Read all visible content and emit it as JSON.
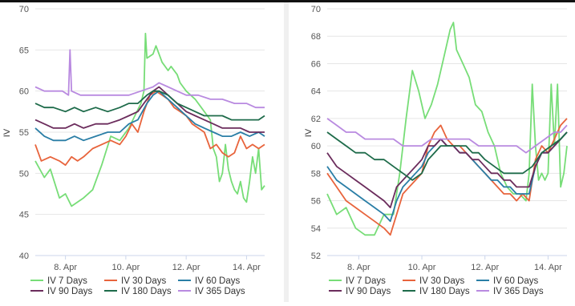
{
  "chart_data": [
    {
      "type": "line",
      "title": "",
      "xlabel": "",
      "ylabel": "IV",
      "ylim": [
        40,
        70
      ],
      "yticks": [
        40,
        45,
        50,
        55,
        60,
        65,
        70
      ],
      "xlim": [
        7.0,
        14.6
      ],
      "xticks": [
        {
          "x": 8,
          "label": "8. Apr"
        },
        {
          "x": 10,
          "label": "10. Apr"
        },
        {
          "x": 12,
          "label": "12. Apr"
        },
        {
          "x": 14,
          "label": "14. Apr"
        }
      ],
      "grid": "horizontal",
      "legend": "bottom",
      "series": [
        {
          "name": "IV 7 Days",
          "color": "#77dd77",
          "x": [
            7.0,
            7.3,
            7.5,
            7.8,
            8.0,
            8.2,
            8.4,
            8.6,
            8.9,
            9.2,
            9.5,
            9.8,
            10.1,
            10.3,
            10.5,
            10.6,
            10.65,
            10.7,
            10.9,
            11.0,
            11.2,
            11.4,
            11.5,
            11.7,
            11.8,
            12.0,
            12.3,
            12.5,
            12.8,
            12.9,
            13.0,
            13.1,
            13.2,
            13.3,
            13.4,
            13.5,
            13.6,
            13.7,
            13.8,
            13.9,
            14.0,
            14.1,
            14.2,
            14.3,
            14.4,
            14.5,
            14.6
          ],
          "values": [
            51.5,
            49.5,
            50.5,
            47.0,
            47.5,
            46.0,
            46.5,
            47.0,
            48.0,
            51.0,
            54.5,
            54.0,
            55.5,
            57.0,
            58.5,
            60.0,
            67.0,
            64.0,
            64.5,
            65.5,
            63.5,
            62.5,
            63.0,
            62.0,
            61.0,
            60.0,
            59.0,
            58.0,
            56.5,
            53.0,
            52.0,
            49.0,
            50.0,
            53.5,
            50.5,
            49.0,
            48.0,
            47.5,
            49.0,
            47.0,
            46.5,
            49.0,
            52.0,
            50.0,
            53.0,
            48.0,
            48.5
          ]
        },
        {
          "name": "IV 30 Days",
          "color": "#e8643c",
          "x": [
            7.0,
            7.2,
            7.5,
            7.8,
            8.0,
            8.2,
            8.4,
            8.6,
            8.9,
            9.2,
            9.5,
            9.8,
            10.0,
            10.2,
            10.4,
            10.6,
            10.8,
            11.0,
            11.2,
            11.4,
            11.6,
            11.8,
            12.0,
            12.2,
            12.4,
            12.6,
            12.8,
            13.0,
            13.2,
            13.4,
            13.6,
            13.8,
            14.0,
            14.2,
            14.4,
            14.6
          ],
          "values": [
            53.5,
            51.5,
            52.0,
            51.5,
            51.0,
            52.0,
            51.5,
            52.0,
            53.0,
            53.5,
            54.0,
            53.5,
            54.5,
            56.0,
            55.0,
            57.5,
            59.5,
            60.0,
            59.5,
            59.0,
            58.0,
            57.5,
            57.0,
            56.0,
            55.5,
            55.0,
            53.0,
            53.5,
            52.5,
            52.0,
            52.5,
            54.5,
            53.0,
            53.5,
            53.0,
            53.5
          ]
        },
        {
          "name": "IV 60 Days",
          "color": "#2a7ea6",
          "x": [
            7.0,
            7.3,
            7.6,
            8.0,
            8.3,
            8.6,
            9.0,
            9.4,
            9.8,
            10.1,
            10.4,
            10.7,
            10.9,
            11.1,
            11.4,
            11.7,
            12.0,
            12.3,
            12.6,
            12.9,
            13.2,
            13.5,
            13.8,
            14.1,
            14.4,
            14.6
          ],
          "values": [
            55.5,
            54.5,
            54.0,
            54.0,
            54.5,
            54.0,
            54.5,
            55.0,
            55.0,
            56.0,
            56.5,
            58.5,
            59.5,
            60.0,
            59.0,
            58.0,
            57.0,
            56.0,
            55.5,
            55.0,
            54.5,
            54.5,
            55.0,
            54.5,
            55.0,
            54.5
          ]
        },
        {
          "name": "IV 90 Days",
          "color": "#6b2c5c",
          "x": [
            7.0,
            7.3,
            7.6,
            8.0,
            8.3,
            8.6,
            9.0,
            9.4,
            9.8,
            10.1,
            10.4,
            10.7,
            10.9,
            11.1,
            11.4,
            11.7,
            12.0,
            12.3,
            12.6,
            12.9,
            13.2,
            13.5,
            13.8,
            14.1,
            14.4,
            14.6
          ],
          "values": [
            56.5,
            56.0,
            55.5,
            55.5,
            56.0,
            55.5,
            56.0,
            56.0,
            56.5,
            57.0,
            57.5,
            59.0,
            60.0,
            60.5,
            59.5,
            58.5,
            57.5,
            57.0,
            56.5,
            56.0,
            55.5,
            55.5,
            55.5,
            55.0,
            55.0,
            55.0
          ]
        },
        {
          "name": "IV 180 Days",
          "color": "#1e6b4a",
          "x": [
            7.0,
            7.3,
            7.6,
            8.0,
            8.3,
            8.6,
            9.0,
            9.4,
            9.8,
            10.1,
            10.4,
            10.7,
            10.9,
            11.1,
            11.4,
            11.7,
            12.0,
            12.3,
            12.6,
            12.9,
            13.2,
            13.5,
            13.8,
            14.1,
            14.4,
            14.6
          ],
          "values": [
            58.5,
            58.0,
            58.0,
            57.5,
            58.0,
            57.5,
            58.0,
            57.5,
            58.0,
            58.5,
            58.5,
            59.5,
            60.0,
            60.0,
            59.5,
            58.5,
            58.0,
            57.5,
            57.0,
            57.0,
            57.0,
            56.5,
            56.5,
            56.5,
            56.5,
            57.0
          ]
        },
        {
          "name": "IV 365 Days",
          "color": "#b98ae0",
          "x": [
            7.0,
            7.3,
            7.6,
            7.9,
            8.1,
            8.15,
            8.2,
            8.5,
            8.9,
            9.3,
            9.7,
            10.1,
            10.5,
            10.9,
            11.1,
            11.4,
            11.7,
            12.0,
            12.4,
            12.8,
            13.2,
            13.6,
            14.0,
            14.3,
            14.6
          ],
          "values": [
            60.5,
            60.0,
            60.0,
            60.0,
            59.5,
            65.0,
            60.0,
            59.5,
            59.5,
            59.5,
            59.5,
            59.5,
            60.0,
            60.5,
            61.0,
            60.5,
            60.0,
            59.5,
            59.5,
            59.0,
            59.0,
            58.5,
            58.5,
            58.0,
            58.0
          ]
        }
      ]
    },
    {
      "type": "line",
      "title": "",
      "xlabel": "",
      "ylabel": "IV",
      "ylim": [
        52,
        70
      ],
      "yticks": [
        52,
        54,
        56,
        58,
        60,
        62,
        64,
        66,
        68,
        70
      ],
      "xlim": [
        7.0,
        14.6
      ],
      "xticks": [
        {
          "x": 8,
          "label": "8. Apr"
        },
        {
          "x": 10,
          "label": "10. Apr"
        },
        {
          "x": 12,
          "label": "12. Apr"
        },
        {
          "x": 14,
          "label": "14. Apr"
        }
      ],
      "grid": "horizontal",
      "legend": "bottom",
      "series": [
        {
          "name": "IV 7 Days",
          "color": "#77dd77",
          "x": [
            7.0,
            7.3,
            7.6,
            7.9,
            8.2,
            8.5,
            8.8,
            9.1,
            9.3,
            9.5,
            9.7,
            9.9,
            10.1,
            10.3,
            10.5,
            10.7,
            10.9,
            11.0,
            11.1,
            11.3,
            11.5,
            11.7,
            11.9,
            12.1,
            12.3,
            12.5,
            12.7,
            12.9,
            13.1,
            13.3,
            13.4,
            13.5,
            13.6,
            13.7,
            13.8,
            13.9,
            14.0,
            14.1,
            14.2,
            14.3,
            14.4,
            14.5,
            14.6
          ],
          "values": [
            56.5,
            55.0,
            55.5,
            54.0,
            53.5,
            53.5,
            55.0,
            55.0,
            58.0,
            62.0,
            65.5,
            64.0,
            62.0,
            63.0,
            64.5,
            66.5,
            68.5,
            69.0,
            67.0,
            66.0,
            65.0,
            63.0,
            62.5,
            61.0,
            60.0,
            58.0,
            57.0,
            56.5,
            56.5,
            56.0,
            58.0,
            64.5,
            60.0,
            57.5,
            58.0,
            57.5,
            58.0,
            64.5,
            60.0,
            64.5,
            57.0,
            58.0,
            60.0
          ]
        },
        {
          "name": "IV 30 Days",
          "color": "#e8643c",
          "x": [
            7.0,
            7.3,
            7.6,
            7.9,
            8.2,
            8.5,
            8.8,
            9.0,
            9.2,
            9.4,
            9.6,
            9.8,
            10.0,
            10.2,
            10.4,
            10.6,
            10.8,
            11.0,
            11.2,
            11.4,
            11.6,
            11.8,
            12.0,
            12.2,
            12.4,
            12.6,
            12.8,
            13.0,
            13.2,
            13.4,
            13.6,
            13.8,
            14.0,
            14.2,
            14.4,
            14.6
          ],
          "values": [
            58.0,
            57.0,
            56.0,
            55.5,
            55.0,
            54.5,
            54.0,
            53.5,
            55.0,
            56.5,
            57.0,
            57.5,
            58.0,
            60.0,
            61.0,
            61.5,
            60.5,
            60.0,
            60.0,
            59.5,
            59.0,
            58.5,
            58.0,
            57.5,
            57.0,
            56.5,
            56.5,
            56.0,
            56.5,
            56.0,
            59.0,
            60.0,
            59.5,
            60.5,
            61.5,
            62.0
          ]
        },
        {
          "name": "IV 60 Days",
          "color": "#2a7ea6",
          "x": [
            7.0,
            7.3,
            7.6,
            7.9,
            8.2,
            8.5,
            8.8,
            9.0,
            9.2,
            9.4,
            9.6,
            9.8,
            10.0,
            10.2,
            10.4,
            10.6,
            10.8,
            11.0,
            11.2,
            11.4,
            11.6,
            11.8,
            12.0,
            12.2,
            12.4,
            12.6,
            12.8,
            13.0,
            13.2,
            13.4,
            13.6,
            13.8,
            14.0,
            14.2,
            14.4,
            14.6
          ],
          "values": [
            58.5,
            57.5,
            57.0,
            56.5,
            56.0,
            55.5,
            55.0,
            54.5,
            56.0,
            57.0,
            57.5,
            58.0,
            58.5,
            59.5,
            60.0,
            60.5,
            60.0,
            60.0,
            59.5,
            59.5,
            59.0,
            58.5,
            58.0,
            57.5,
            57.5,
            57.0,
            57.0,
            56.5,
            56.5,
            56.5,
            58.5,
            59.5,
            59.5,
            60.0,
            60.5,
            61.0
          ]
        },
        {
          "name": "IV 90 Days",
          "color": "#6b2c5c",
          "x": [
            7.0,
            7.3,
            7.6,
            7.9,
            8.2,
            8.5,
            8.8,
            9.0,
            9.2,
            9.4,
            9.6,
            9.8,
            10.0,
            10.2,
            10.4,
            10.6,
            10.8,
            11.0,
            11.2,
            11.4,
            11.6,
            11.8,
            12.0,
            12.2,
            12.4,
            12.6,
            12.8,
            13.0,
            13.2,
            13.4,
            13.6,
            13.8,
            14.0,
            14.2,
            14.4,
            14.6
          ],
          "values": [
            59.5,
            58.5,
            58.0,
            57.5,
            57.0,
            56.5,
            56.0,
            55.5,
            57.0,
            57.5,
            58.0,
            58.5,
            59.0,
            60.0,
            60.0,
            60.5,
            60.0,
            60.0,
            59.5,
            59.5,
            59.0,
            59.0,
            58.5,
            58.0,
            58.0,
            57.5,
            57.5,
            57.0,
            57.0,
            57.0,
            58.5,
            59.5,
            59.5,
            60.0,
            60.5,
            61.0
          ]
        },
        {
          "name": "IV 180 Days",
          "color": "#1e6b4a",
          "x": [
            7.0,
            7.3,
            7.6,
            7.9,
            8.2,
            8.5,
            8.8,
            9.1,
            9.4,
            9.7,
            10.0,
            10.2,
            10.4,
            10.6,
            10.8,
            11.0,
            11.2,
            11.4,
            11.6,
            11.8,
            12.0,
            12.3,
            12.6,
            12.9,
            13.2,
            13.5,
            13.8,
            14.1,
            14.4,
            14.6
          ],
          "values": [
            61.0,
            60.5,
            60.0,
            59.5,
            59.5,
            59.0,
            59.0,
            58.5,
            58.0,
            57.5,
            58.0,
            59.0,
            59.5,
            60.0,
            60.0,
            60.0,
            60.0,
            60.0,
            59.5,
            59.5,
            59.0,
            58.5,
            58.0,
            58.0,
            58.0,
            58.5,
            59.5,
            60.0,
            60.5,
            61.0
          ]
        },
        {
          "name": "IV 365 Days",
          "color": "#b98ae0",
          "x": [
            7.0,
            7.3,
            7.6,
            7.9,
            8.2,
            8.5,
            8.8,
            9.1,
            9.4,
            9.7,
            10.0,
            10.3,
            10.6,
            10.9,
            11.2,
            11.5,
            11.8,
            12.1,
            12.4,
            12.7,
            13.0,
            13.3,
            13.6,
            13.9,
            14.2,
            14.4,
            14.6
          ],
          "values": [
            62.0,
            61.5,
            61.0,
            61.0,
            60.5,
            60.5,
            60.5,
            60.5,
            60.0,
            60.0,
            60.0,
            60.5,
            60.5,
            60.5,
            60.5,
            60.5,
            60.0,
            60.0,
            60.0,
            60.0,
            60.0,
            59.5,
            60.0,
            60.5,
            61.0,
            61.0,
            61.5
          ]
        }
      ]
    }
  ]
}
